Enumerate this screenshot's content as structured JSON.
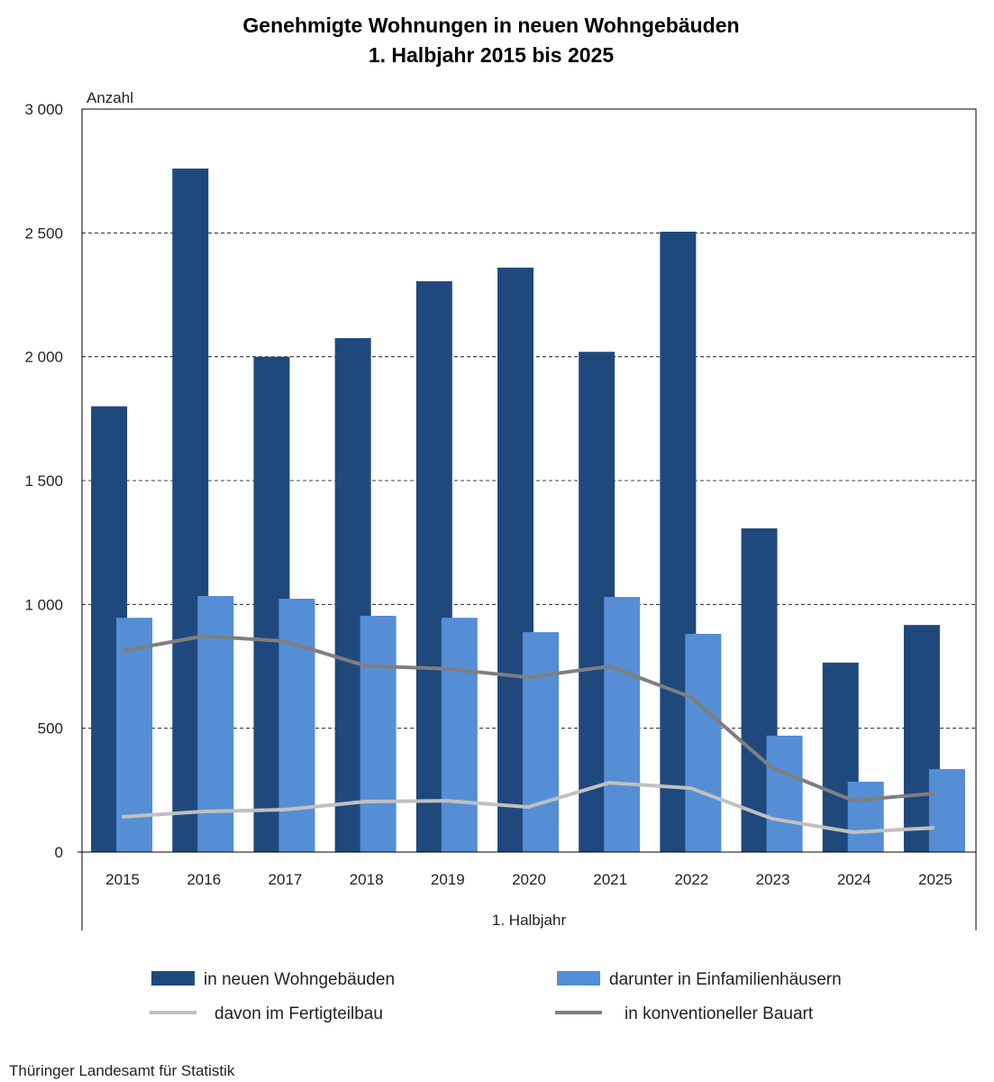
{
  "chart_data": {
    "type": "bar",
    "title": "Genehmigte Wohnungen in neuen Wohngebäuden",
    "subtitle": "1. Halbjahr 2015 bis 2025",
    "ylabel": "Anzahl",
    "xlabel": "1. Halbjahr",
    "ylim": [
      0,
      3000
    ],
    "yticks": [
      0,
      500,
      1000,
      1500,
      2000,
      2500,
      3000
    ],
    "ytick_labels": [
      "0",
      "500",
      "1 000",
      "1 500",
      "2 000",
      "2 500",
      "3 000"
    ],
    "grid": true,
    "categories": [
      "2015",
      "2016",
      "2017",
      "2018",
      "2019",
      "2020",
      "2021",
      "2022",
      "2023",
      "2024",
      "2025"
    ],
    "series": [
      {
        "name": "in neuen Wohngebäuden",
        "type": "bar",
        "color": "#1f497d",
        "values": [
          1800,
          2760,
          2000,
          2075,
          2305,
          2360,
          2020,
          2505,
          1307,
          765,
          917
        ]
      },
      {
        "name": "darunter in Einfamilienhäusern",
        "type": "bar",
        "color": "#558ed5",
        "values": [
          946,
          1034,
          1023,
          954,
          946,
          888,
          1030,
          881,
          470,
          284,
          335
        ]
      },
      {
        "name": "davon im Fertigteilbau",
        "type": "line",
        "color": "#c0c0c0",
        "values": [
          142,
          164,
          171,
          204,
          207,
          182,
          280,
          258,
          135,
          80,
          98
        ]
      },
      {
        "name": "in konventioneller Bauart",
        "type": "line",
        "color": "#7f7f7f",
        "values": [
          812,
          872,
          852,
          752,
          740,
          706,
          750,
          626,
          340,
          208,
          237
        ]
      }
    ],
    "legend_placement": "bottom",
    "source": "Thüringer Landesamt für Statistik"
  }
}
